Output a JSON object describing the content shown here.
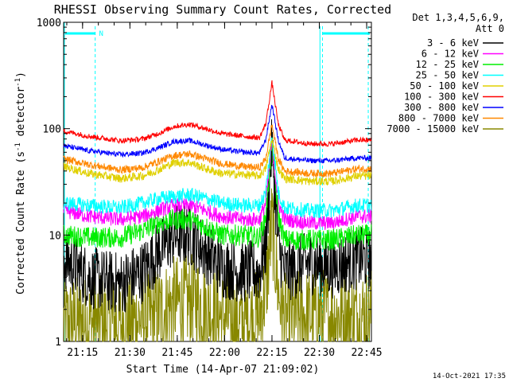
{
  "chart_data": {
    "type": "line",
    "title": "RHESSI Observing Summary Count Rates, Corrected",
    "xlabel": "Start Time (14-Apr-07 21:09:02)",
    "ylabel": "Corrected Count Rate (s",
    "ylabel_sup1": "-1",
    "ylabel_mid": " detector",
    "ylabel_sup2": "-1",
    "ylabel_end": ")",
    "yscale": "log",
    "ylim": [
      1,
      1000
    ],
    "xlim_minutes": [
      0,
      97.5
    ],
    "x_start_time": "21:09:02",
    "y_ticks": [
      {
        "value": 1,
        "label": "1"
      },
      {
        "value": 10,
        "label": "10"
      },
      {
        "value": 100,
        "label": "100"
      },
      {
        "value": 1000,
        "label": "1000"
      }
    ],
    "x_ticks": [
      {
        "minute": 6,
        "label": "21:15"
      },
      {
        "minute": 21,
        "label": "21:30"
      },
      {
        "minute": 36,
        "label": "21:45"
      },
      {
        "minute": 51,
        "label": "22:00"
      },
      {
        "minute": 66,
        "label": "22:15"
      },
      {
        "minute": 81,
        "label": "22:30"
      },
      {
        "minute": 96,
        "label": "22:45"
      }
    ],
    "legend_header": [
      "Det 1,3,4,5,6,9,",
      "Att 0"
    ],
    "legend_position": "top-right outside",
    "series": [
      {
        "name": "3 - 6 keV",
        "color": "#000000",
        "points": [
          [
            0,
            6
          ],
          [
            8,
            4
          ],
          [
            18,
            3.5
          ],
          [
            25,
            4.5
          ],
          [
            30,
            7
          ],
          [
            35,
            10
          ],
          [
            40,
            10
          ],
          [
            45,
            7
          ],
          [
            50,
            5
          ],
          [
            57,
            4.5
          ],
          [
            62,
            4.5
          ],
          [
            64,
            8
          ],
          [
            66,
            70
          ],
          [
            68,
            8
          ],
          [
            70,
            4.5
          ],
          [
            78,
            5.5
          ],
          [
            85,
            5
          ],
          [
            93,
            6
          ],
          [
            97.5,
            6
          ]
        ],
        "noise": 0.3
      },
      {
        "name": "6 - 12 keV",
        "color": "#ff00ff",
        "points": [
          [
            0,
            17
          ],
          [
            8,
            15
          ],
          [
            18,
            14
          ],
          [
            25,
            15
          ],
          [
            30,
            17
          ],
          [
            35,
            19
          ],
          [
            40,
            19
          ],
          [
            45,
            17
          ],
          [
            50,
            15
          ],
          [
            57,
            14
          ],
          [
            62,
            14
          ],
          [
            64,
            20
          ],
          [
            66,
            75
          ],
          [
            68,
            20
          ],
          [
            70,
            14
          ],
          [
            78,
            13
          ],
          [
            85,
            13
          ],
          [
            93,
            15
          ],
          [
            97.5,
            15
          ]
        ],
        "noise": 0.07
      },
      {
        "name": "12 - 25 keV",
        "color": "#00ee00",
        "points": [
          [
            0,
            10
          ],
          [
            8,
            9.5
          ],
          [
            18,
            9.5
          ],
          [
            25,
            11
          ],
          [
            30,
            13
          ],
          [
            35,
            14
          ],
          [
            40,
            14
          ],
          [
            45,
            12
          ],
          [
            50,
            10
          ],
          [
            57,
            10
          ],
          [
            62,
            9.5
          ],
          [
            64,
            15
          ],
          [
            66,
            72
          ],
          [
            68,
            15
          ],
          [
            70,
            9
          ],
          [
            78,
            9
          ],
          [
            85,
            9
          ],
          [
            93,
            10
          ],
          [
            97.5,
            10
          ]
        ],
        "noise": 0.1
      },
      {
        "name": "25 - 50 keV",
        "color": "#00ffff",
        "points": [
          [
            0,
            20
          ],
          [
            8,
            19
          ],
          [
            18,
            18
          ],
          [
            25,
            20
          ],
          [
            30,
            22
          ],
          [
            35,
            23
          ],
          [
            40,
            24
          ],
          [
            45,
            22
          ],
          [
            50,
            20
          ],
          [
            57,
            19
          ],
          [
            62,
            19
          ],
          [
            64,
            25
          ],
          [
            66,
            88
          ],
          [
            68,
            25
          ],
          [
            70,
            18
          ],
          [
            78,
            17
          ],
          [
            85,
            17
          ],
          [
            93,
            19
          ],
          [
            97.5,
            19
          ]
        ],
        "noise": 0.07
      },
      {
        "name": "50 - 100 keV",
        "color": "#e0d000",
        "points": [
          [
            0,
            44
          ],
          [
            8,
            38
          ],
          [
            18,
            34
          ],
          [
            25,
            36
          ],
          [
            30,
            41
          ],
          [
            35,
            48
          ],
          [
            40,
            48
          ],
          [
            45,
            42
          ],
          [
            50,
            38
          ],
          [
            57,
            37
          ],
          [
            62,
            36
          ],
          [
            64,
            42
          ],
          [
            66,
            80
          ],
          [
            68,
            42
          ],
          [
            70,
            34
          ],
          [
            78,
            32
          ],
          [
            85,
            32
          ],
          [
            93,
            36
          ],
          [
            97.5,
            36
          ]
        ],
        "noise": 0.04
      },
      {
        "name": "100 - 300 keV",
        "color": "#ff0000",
        "points": [
          [
            0,
            95
          ],
          [
            8,
            85
          ],
          [
            18,
            77
          ],
          [
            25,
            80
          ],
          [
            30,
            90
          ],
          [
            35,
            105
          ],
          [
            40,
            110
          ],
          [
            45,
            100
          ],
          [
            50,
            90
          ],
          [
            57,
            85
          ],
          [
            62,
            82
          ],
          [
            64,
            110
          ],
          [
            66,
            270
          ],
          [
            68,
            110
          ],
          [
            70,
            78
          ],
          [
            78,
            72
          ],
          [
            85,
            72
          ],
          [
            93,
            78
          ],
          [
            97.5,
            78
          ]
        ],
        "noise": 0.025
      },
      {
        "name": "300 - 800 keV",
        "color": "#0000ff",
        "points": [
          [
            0,
            69
          ],
          [
            8,
            62
          ],
          [
            18,
            57
          ],
          [
            25,
            59
          ],
          [
            30,
            66
          ],
          [
            35,
            76
          ],
          [
            40,
            77
          ],
          [
            45,
            70
          ],
          [
            50,
            64
          ],
          [
            57,
            60
          ],
          [
            62,
            59
          ],
          [
            64,
            78
          ],
          [
            66,
            170
          ],
          [
            68,
            78
          ],
          [
            70,
            53
          ],
          [
            78,
            50
          ],
          [
            85,
            50
          ],
          [
            93,
            53
          ],
          [
            97.5,
            53
          ]
        ],
        "noise": 0.025
      },
      {
        "name": "800 - 7000 keV",
        "color": "#ff8800",
        "points": [
          [
            0,
            52
          ],
          [
            8,
            46
          ],
          [
            18,
            41
          ],
          [
            25,
            43
          ],
          [
            30,
            49
          ],
          [
            35,
            56
          ],
          [
            40,
            58
          ],
          [
            45,
            52
          ],
          [
            50,
            47
          ],
          [
            57,
            44
          ],
          [
            62,
            43
          ],
          [
            64,
            52
          ],
          [
            66,
            110
          ],
          [
            68,
            52
          ],
          [
            70,
            40
          ],
          [
            78,
            38
          ],
          [
            85,
            38
          ],
          [
            93,
            42
          ],
          [
            97.5,
            42
          ]
        ],
        "noise": 0.035
      },
      {
        "name": "7000 - 15000 keV",
        "color": "#888800",
        "points": [
          [
            0,
            1.5
          ],
          [
            20,
            1.5
          ],
          [
            28,
            1.7
          ],
          [
            35,
            2.3
          ],
          [
            42,
            2.4
          ],
          [
            47,
            1.9
          ],
          [
            55,
            1.5
          ],
          [
            62,
            1.7
          ],
          [
            64,
            3
          ],
          [
            66,
            13
          ],
          [
            68,
            3
          ],
          [
            70,
            1.6
          ],
          [
            80,
            1.8
          ],
          [
            90,
            1.7
          ],
          [
            97.5,
            1.8
          ]
        ],
        "noise": 0.45
      }
    ],
    "annotations": [
      {
        "text": "N",
        "color": "#00ffff",
        "position": "top-left, on night bar"
      }
    ],
    "footer_timestamp": "14-Oct-2021 17:35"
  }
}
